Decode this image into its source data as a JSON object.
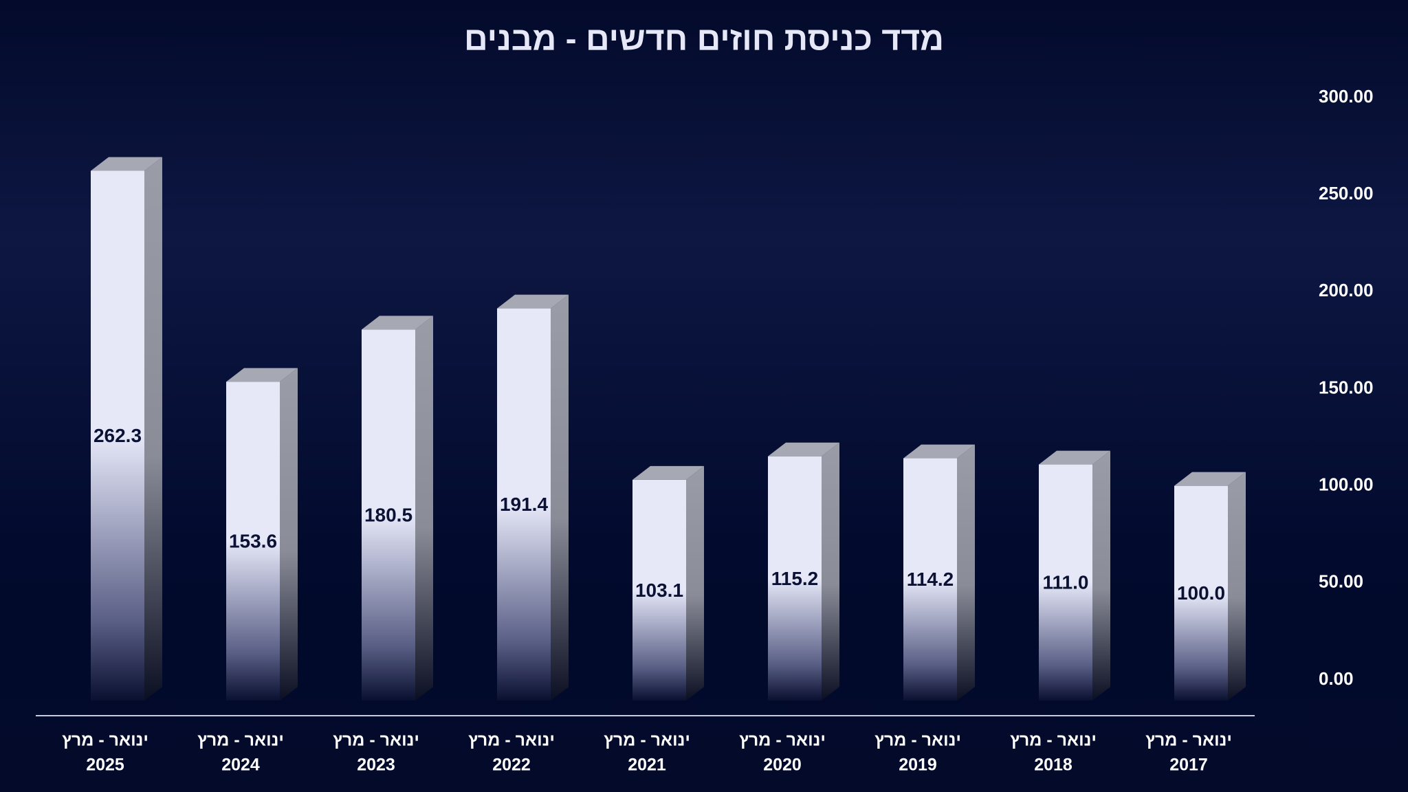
{
  "chart_data": {
    "type": "bar3d",
    "title": "מדד כניסת חוזים חדשים - מבנים",
    "categories": [
      [
        "ינואר - מרץ",
        "2025"
      ],
      [
        "ינואר - מרץ",
        "2024"
      ],
      [
        "ינואר - מרץ",
        "2023"
      ],
      [
        "ינואר - מרץ",
        "2022"
      ],
      [
        "ינואר - מרץ",
        "2021"
      ],
      [
        "ינואר - מרץ",
        "2020"
      ],
      [
        "ינואר - מרץ",
        "2019"
      ],
      [
        "ינואר - מרץ",
        "2018"
      ],
      [
        "ינואר - מרץ",
        "2017"
      ]
    ],
    "values": [
      262.3,
      153.6,
      180.5,
      191.4,
      103.1,
      115.2,
      114.2,
      111.0,
      100.0
    ],
    "value_labels": [
      "262.3",
      "153.6",
      "180.5",
      "191.4",
      "103.1",
      "115.2",
      "114.2",
      "111.0",
      "100.0"
    ],
    "color": "#e6e8f8",
    "ylim": [
      0,
      300
    ],
    "yticks": [
      {
        "value": 0,
        "label": "0.00"
      },
      {
        "value": 50,
        "label": "50.00"
      },
      {
        "value": 100,
        "label": "100.00"
      },
      {
        "value": 150,
        "label": "150.00"
      },
      {
        "value": 200,
        "label": "200.00"
      },
      {
        "value": 250,
        "label": "250.00"
      },
      {
        "value": 300,
        "label": "300.00"
      }
    ],
    "y_axis_side": "right"
  }
}
